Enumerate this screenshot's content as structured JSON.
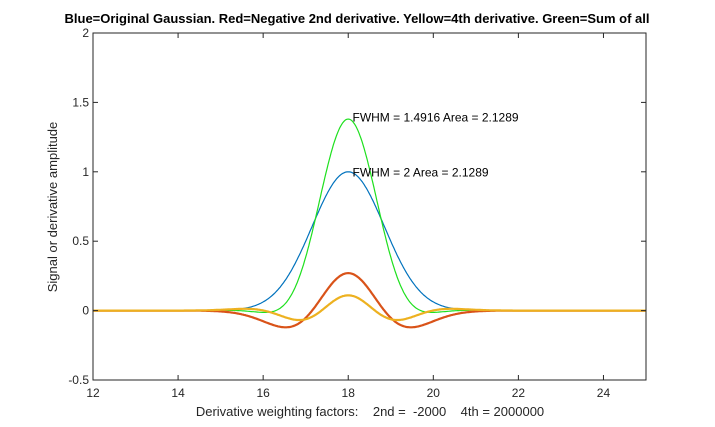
{
  "chart_data": {
    "type": "line",
    "title": "Blue=Original Gaussian.   Red=Negative 2nd derivative.   Yellow=4th derivative.   Green=Sum of all",
    "xlabel": "Derivative weighting factors:    2nd =  -2000    4th = 2000000",
    "ylabel": "Signal or derivative amplitude",
    "xlim": [
      12,
      25
    ],
    "ylim": [
      -0.5,
      2
    ],
    "xticks": [
      "12",
      "14",
      "16",
      "18",
      "20",
      "22",
      "24"
    ],
    "xtick_values": [
      12,
      14,
      16,
      18,
      20,
      22,
      24
    ],
    "yticks": [
      "-0.5",
      "0",
      "0.5",
      "1",
      "1.5",
      "2"
    ],
    "ytick_values": [
      -0.5,
      0,
      0.5,
      1,
      1.5,
      2
    ],
    "grid": false,
    "gaussian": {
      "center": 18,
      "fwhm": 2,
      "height": 1
    },
    "series": [
      {
        "name": "Original Gaussian",
        "color": "#0072BD",
        "peak": 1.0,
        "component": "g"
      },
      {
        "name": "Negative 2nd derivative",
        "color": "#D95319",
        "peak": 0.27,
        "component": "neg_d2"
      },
      {
        "name": "4th derivative",
        "color": "#EDB120",
        "peak": 0.11,
        "component": "d4"
      },
      {
        "name": "Sum of all",
        "color": "#1EE01E",
        "peak": 1.38,
        "component": "sum"
      }
    ],
    "annotations": [
      {
        "text": "FWHM =  1.4916    Area = 2.1289",
        "x": 18.1,
        "y": 1.39
      },
      {
        "text": "FWHM =  2    Area = 2.1289",
        "x": 18.1,
        "y": 0.995
      }
    ]
  }
}
